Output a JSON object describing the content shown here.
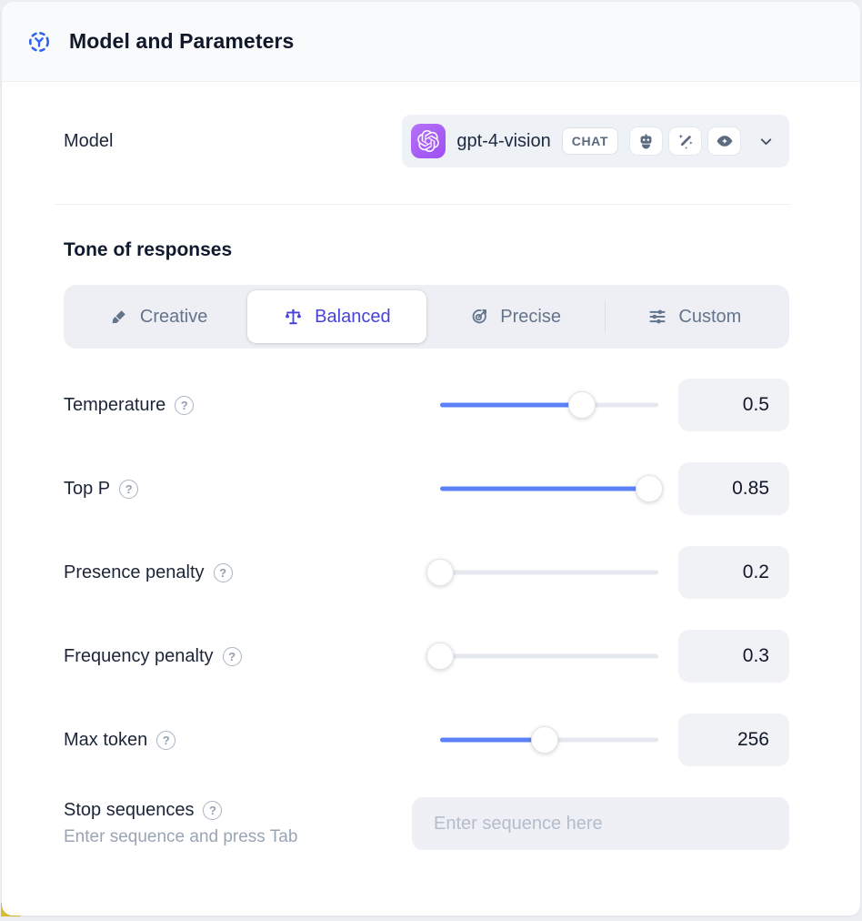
{
  "header": {
    "title": "Model and Parameters"
  },
  "model": {
    "label": "Model",
    "name": "gpt-4-vision",
    "type_badge": "CHAT",
    "capability_icons": [
      "bot-icon",
      "magic-wand-icon",
      "vision-eye-icon"
    ]
  },
  "tone": {
    "title": "Tone of responses",
    "options": [
      {
        "label": "Creative",
        "icon": "paintbrush-icon",
        "active": false
      },
      {
        "label": "Balanced",
        "icon": "scales-icon",
        "active": true
      },
      {
        "label": "Precise",
        "icon": "target-icon",
        "active": false
      },
      {
        "label": "Custom",
        "icon": "sliders-icon",
        "active": false
      }
    ]
  },
  "parameters": [
    {
      "label": "Temperature",
      "value": "0.5",
      "percent": 65
    },
    {
      "label": "Top P",
      "value": "0.85",
      "percent": 96
    },
    {
      "label": "Presence penalty",
      "value": "0.2",
      "percent": 0
    },
    {
      "label": "Frequency penalty",
      "value": "0.3",
      "percent": 0
    },
    {
      "label": "Max token",
      "value": "256",
      "percent": 48
    }
  ],
  "stop": {
    "label": "Stop sequences",
    "hint": "Enter sequence and press Tab",
    "placeholder": "Enter sequence here"
  },
  "colors": {
    "accent_blue": "#5b82f6",
    "active_indigo": "#4742d9",
    "provider_purple": "#9e4ef3",
    "corner_yellow": "#d9bf2e"
  }
}
